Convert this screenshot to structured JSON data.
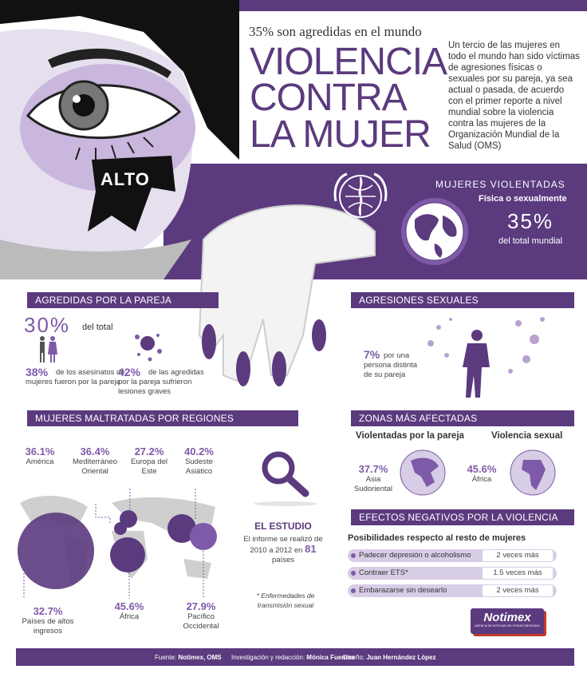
{
  "header": {
    "kicker": "35% son agredidas en el mundo",
    "title_lines": [
      "VIOLENCIA",
      "CONTRA",
      "LA MUJER"
    ],
    "intro": "Un tercio de las mujeres en todo el mundo han sido víctimas de agresiones físicas o sexuales por su pareja, ya sea actual o pasada, de acuerdo con el primer reporte a nivel mundial sobre la violencia contra las mujeres de la Organización Mundial de la Salud (OMS)",
    "alto": "ALTO"
  },
  "global": {
    "title": "MUJERES VIOLENTADAS",
    "subtitle": "Física o sexualmente",
    "pct": "35%",
    "caption": "del total mundial"
  },
  "pareja": {
    "band": "AGREDIDAS POR LA PAREJA",
    "pct": "30%",
    "pct_label": "del total",
    "stat1_pct": "38%",
    "stat1_text": "de los asesinatos de mujeres fueron por la pareja",
    "stat2_pct": "42%",
    "stat2_text": "de las agredidas por la pareja sufrieron lesiones graves"
  },
  "sexual": {
    "band": "AGRESIONES SEXUALES",
    "pct": "7%",
    "text": "por una persona distinta de su pareja"
  },
  "regiones": {
    "band": "MUJERES MALTRATADAS POR REGIONES",
    "items": [
      {
        "pct": "36.1%",
        "name": "América"
      },
      {
        "pct": "36.4%",
        "name": "Mediterráneo Oriental"
      },
      {
        "pct": "27.2%",
        "name": "Europa del Este"
      },
      {
        "pct": "40.2%",
        "name": "Sudeste Asiático"
      },
      {
        "pct": "32.7%",
        "name": "Países de altos ingresos"
      },
      {
        "pct": "45.6%",
        "name": "África"
      },
      {
        "pct": "27.9%",
        "name": "Pacífico Occidental"
      }
    ]
  },
  "estudio": {
    "title": "EL ESTUDIO",
    "text_a": "El informe se realizó de 2010 a 2012 en",
    "countries": "81",
    "text_b": "países",
    "footnote": "* Enfermedades de transmisión sexual"
  },
  "zonas": {
    "band": "ZONAS MÁS AFECTADAS",
    "col1_title": "Violentadas por la pareja",
    "col1_pct": "37.7%",
    "col1_region": "Asia Sudoriental",
    "col2_title": "Violencia sexual",
    "col2_pct": "45.6%",
    "col2_region": "África"
  },
  "efectos": {
    "band": "EFECTOS NEGATIVOS POR LA VIOLENCIA",
    "subtitle": "Posibilidades respecto al resto de mujeres",
    "rows": [
      {
        "label": "Padecer depresión o alcoholismo",
        "value": "2 veces más"
      },
      {
        "label": "Contraer ETS*",
        "value": "1.5 veces más"
      },
      {
        "label": "Embarazarse sin desearlo",
        "value": "2 veces más"
      }
    ]
  },
  "brand": {
    "name": "Notimex",
    "tagline": "AGENCIA DE NOTICIAS DEL ESTADO MEXICANO"
  },
  "footer": {
    "fuente_label": "Fuente:",
    "fuente": "Notimex, OMS",
    "inv_label": "Investigación y redacción:",
    "inv": "Mónica Fuentes",
    "diseno_label": "Diseño:",
    "diseno": "Juan Hernández López"
  },
  "colors": {
    "primary": "#5b3a7e",
    "light": "#d8cde6",
    "accent": "#7e5aa8"
  }
}
